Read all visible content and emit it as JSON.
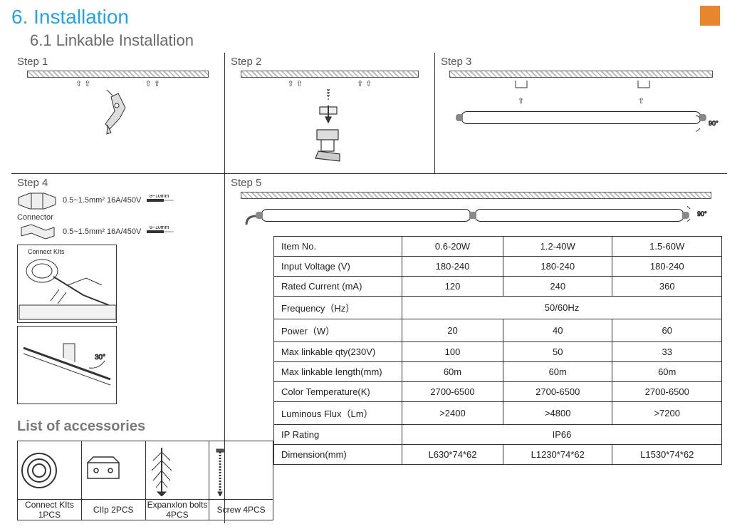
{
  "section": {
    "number_title": "6. Installation",
    "sub": "6.1 Linkable Installation"
  },
  "steps": {
    "s1": "Step 1",
    "s2": "Step 2",
    "s3": "Step 3",
    "s4": "Step 4",
    "s5": "Step 5"
  },
  "step3": {
    "angle": "90°"
  },
  "step4": {
    "spec1": "0.5~1.5mm²  16A/450V",
    "spec2": "0.5~1.5mm²  16A/450V",
    "strip1": "8~10mm",
    "strip2": "8~10mm",
    "connector_label": "Connector",
    "kits_label": "Connect KIts",
    "angle30": "30°"
  },
  "step5": {
    "angle": "90°"
  },
  "spec": {
    "rows": [
      {
        "label": "Item No.",
        "c": [
          "0.6-20W",
          "1.2-40W",
          "1.5-60W"
        ]
      },
      {
        "label": "Input Voltage (V)",
        "c": [
          "180-240",
          "180-240",
          "180-240"
        ]
      },
      {
        "label": "Rated Current (mA)",
        "c": [
          "120",
          "240",
          "360"
        ]
      },
      {
        "label": "Frequency（Hz）",
        "span": "50/60Hz"
      },
      {
        "label": "Power（W）",
        "c": [
          "20",
          "40",
          "60"
        ]
      },
      {
        "label": "Max linkable qty(230V)",
        "c": [
          "100",
          "50",
          "33"
        ]
      },
      {
        "label": "Max linkable length(mm)",
        "c": [
          "60m",
          "60m",
          "60m"
        ]
      },
      {
        "label": "Color Temperature(K)",
        "c": [
          "2700-6500",
          "2700-6500",
          "2700-6500"
        ]
      },
      {
        "label": "Luminous Flux（Lm）",
        "c": [
          ">2400",
          ">4800",
          ">7200"
        ]
      },
      {
        "label": "IP Rating",
        "span": "IP66"
      },
      {
        "label": "Dimension(mm)",
        "c": [
          "L630*74*62",
          "L1230*74*62",
          "L1530*74*62"
        ]
      }
    ]
  },
  "accessories": {
    "title": "List of accessories",
    "items": [
      {
        "label": "Connect KIts 1PCS"
      },
      {
        "label": "CIIp 2PCS"
      },
      {
        "label": "Expanxlon bolts 4PCS"
      },
      {
        "label": "Screw 4PCS"
      }
    ]
  },
  "colors": {
    "accent": "#2aa1d8",
    "orange": "#e8862f",
    "gray": "#6a6a6a"
  }
}
